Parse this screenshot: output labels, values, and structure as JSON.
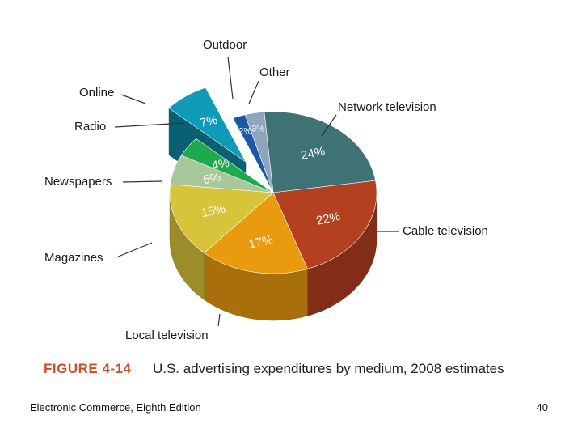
{
  "caption": {
    "figure_number": "FIGURE 4-14",
    "title": "U.S. advertising expenditures by medium, 2008 estimates"
  },
  "footer": {
    "left": "Electronic Commerce, Eighth Edition",
    "page": "40"
  },
  "chart_data": {
    "type": "pie",
    "title": "U.S. advertising expenditures by medium, 2008 estimates",
    "unit": "%",
    "slices": [
      {
        "label": "Network television",
        "value": 24,
        "value_label": "24%",
        "color": "#3f7274"
      },
      {
        "label": "Cable television",
        "value": 22,
        "value_label": "22%",
        "color": "#b5401f"
      },
      {
        "label": "Local television",
        "value": 17,
        "value_label": "17%",
        "color": "#e99a0f"
      },
      {
        "label": "Magazines",
        "value": 15,
        "value_label": "15%",
        "color": "#d8c43b"
      },
      {
        "label": "Newspapers",
        "value": 6,
        "value_label": "6%",
        "color": "#a8c79a"
      },
      {
        "label": "Radio",
        "value": 4,
        "value_label": "4%",
        "color": "#1eaa4c"
      },
      {
        "label": "Online",
        "value": 7,
        "value_label": "7%",
        "color": "#0f9bb8",
        "exploded": true
      },
      {
        "label": "Outdoor",
        "value": 2,
        "value_label": "2%",
        "color": "#1b58a6"
      },
      {
        "label": "Other",
        "value": 3,
        "value_label": "3%",
        "color": "#8da6bb"
      }
    ]
  }
}
